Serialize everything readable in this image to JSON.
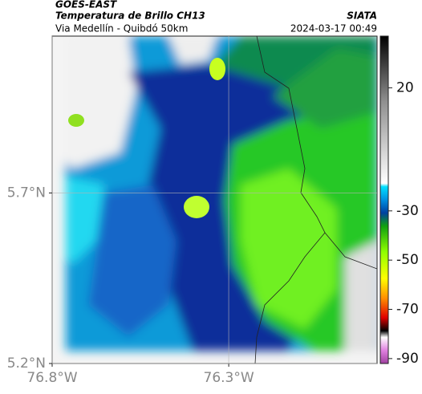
{
  "header": {
    "title": "GOES-EAST",
    "subtitle": "Temperatura de Brillo CH13",
    "source": "SIATA",
    "location": "Via Medellín - Quibdó 50km",
    "timestamp": "2024-03-17 00:49"
  },
  "map": {
    "lon_range": [
      -76.8,
      -75.88
    ],
    "lat_range": [
      5.2,
      6.16
    ],
    "lon_ticks": [
      {
        "value": -76.8,
        "label": "76.8°W"
      },
      {
        "value": -76.3,
        "label": "76.3°W"
      }
    ],
    "lat_ticks": [
      {
        "value": 5.7,
        "label": "5.7°N"
      },
      {
        "value": 5.2,
        "label": "5.2°N"
      }
    ],
    "grid": true
  },
  "colorbar": {
    "range": [
      -92,
      41
    ],
    "ticks": [
      20,
      -30,
      -50,
      -70,
      -90
    ]
  }
}
